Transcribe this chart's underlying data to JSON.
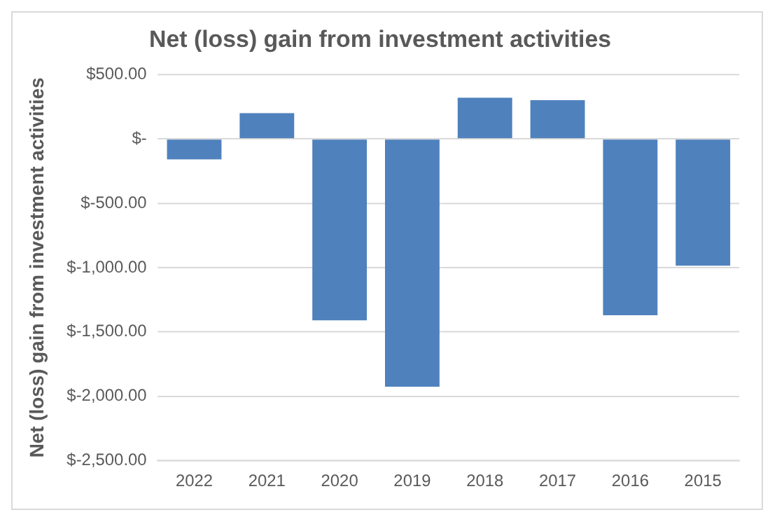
{
  "chart_data": {
    "type": "bar",
    "title": "Net (loss) gain from investment activities",
    "ylabel": "Net (loss) gain from investment activities",
    "categories": [
      "2022",
      "2021",
      "2020",
      "2019",
      "2018",
      "2017",
      "2016",
      "2015"
    ],
    "values": [
      -160,
      200,
      -1410,
      -1925,
      320,
      300,
      -1370,
      -985
    ],
    "color": "#4f81bd",
    "ylim": [
      -2500,
      500
    ],
    "yticks": [
      {
        "value": 500,
        "label": "$500.00"
      },
      {
        "value": 0,
        "label": "$-"
      },
      {
        "value": -500,
        "label": "$-500.00"
      },
      {
        "value": -1000,
        "label": "$-1,000.00"
      },
      {
        "value": -1500,
        "label": "$-1,500.00"
      },
      {
        "value": -2000,
        "label": "$-2,000.00"
      },
      {
        "value": -2500,
        "label": "$-2,500.00"
      }
    ],
    "grid": "y",
    "legend": false
  }
}
